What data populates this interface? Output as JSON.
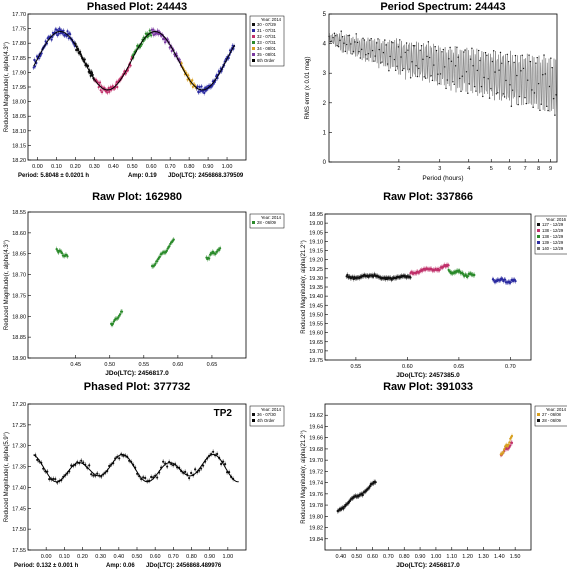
{
  "chart_data": [
    {
      "type": "scatter",
      "title": "Phased Plot: 24443",
      "ylabel": "Reduced Magnitude(r, alpha(4.3°)",
      "xlim": [
        -0.05,
        1.1
      ],
      "ylim": [
        18.2,
        17.7
      ],
      "xticks": [
        "0.00",
        "0.10",
        "0.20",
        "0.30",
        "0.40",
        "0.50",
        "0.60",
        "0.70",
        "0.80",
        "0.90",
        "1.00"
      ],
      "yticks": [
        "17.70",
        "17.75",
        "17.80",
        "17.85",
        "17.90",
        "17.95",
        "18.00",
        "18.05",
        "18.10",
        "18.15",
        "18.20"
      ],
      "footer": [
        "Period: 5.8048 ± 0.0201 h",
        "Amp: 0.19",
        "JDo(LTC): 2456868.379509"
      ],
      "legend": {
        "title": "Year: 2014",
        "items": [
          {
            "label": "30 - 07/29",
            "color": "#111111"
          },
          {
            "label": "31 - 07/31",
            "color": "#2a2aa0"
          },
          {
            "label": "32 - 07/31",
            "color": "#c0306a"
          },
          {
            "label": "33 - 07/31",
            "color": "#2a8a2a"
          },
          {
            "label": "34 - 08/01",
            "color": "#d8a020"
          },
          {
            "label": "35 - 08/01",
            "color": "#7a3aa0"
          },
          {
            "label": "6th Order",
            "color": "#000000"
          }
        ]
      },
      "fit": {
        "mean": 17.86,
        "amp": 0.1,
        "harmonic": 2
      },
      "colors": [
        "#2a2aa0",
        "#111111",
        "#c0306a",
        "#2a8a2a",
        "#7a3aa0",
        "#d8a020",
        "#2a2aa0"
      ],
      "segments": [
        0.0,
        0.2,
        0.3,
        0.5,
        0.6,
        0.76,
        0.84,
        1.05
      ]
    },
    {
      "type": "line",
      "title": "Period Spectrum: 24443",
      "ylabel": "RMS error (x 0.01 mag)",
      "xlabel": "Period (hours)",
      "xscale": "log",
      "xlim": [
        1.0,
        9.6
      ],
      "ylim": [
        0,
        5
      ],
      "xticks": [
        {
          "v": 2,
          "t": "2"
        },
        {
          "v": 3,
          "t": "3"
        },
        {
          "v": 4,
          "t": "4"
        },
        {
          "v": 5,
          "t": "5"
        },
        {
          "v": 6,
          "t": "6"
        },
        {
          "v": 7,
          "t": "7"
        },
        {
          "v": 8,
          "t": "8"
        },
        {
          "v": 9,
          "t": "9"
        }
      ],
      "yticks": [
        "0",
        "1",
        "2",
        "3",
        "4",
        "5"
      ],
      "envelope": {
        "top_start": 4.35,
        "top_end": 3.5,
        "bottom_start": 4.1,
        "bottom_end": 1.6
      }
    },
    {
      "type": "scatter",
      "title": "Raw Plot: 162980",
      "ylabel": "Reduced Magnitude(r, alpha(4.3°)",
      "xlabel": "JDo(LTC): 2456817.0",
      "xlim": [
        0.38,
        0.7
      ],
      "ylim": [
        18.9,
        18.55
      ],
      "xticks": [
        "0.45",
        "0.50",
        "0.55",
        "0.60",
        "0.65"
      ],
      "yticks": [
        "18.55",
        "18.60",
        "18.65",
        "18.70",
        "18.75",
        "18.80",
        "18.85",
        "18.90"
      ],
      "legend": {
        "title": "Year: 2014",
        "items": [
          {
            "label": "28 - 06/09",
            "color": "#2a8a2a"
          }
        ]
      },
      "blocks": [
        {
          "x0": 0.422,
          "x1": 0.438,
          "y0": 18.64,
          "y1": 18.66,
          "color": "#2a8a2a"
        },
        {
          "x0": 0.502,
          "x1": 0.518,
          "y0": 18.82,
          "y1": 18.79,
          "color": "#2a8a2a"
        },
        {
          "x0": 0.562,
          "x1": 0.594,
          "y0": 18.68,
          "y1": 18.62,
          "color": "#2a8a2a"
        },
        {
          "x0": 0.642,
          "x1": 0.662,
          "y0": 18.66,
          "y1": 18.64,
          "color": "#2a8a2a"
        }
      ]
    },
    {
      "type": "scatter",
      "title": "Raw Plot: 337866",
      "ylabel": "Reduced Magnitude(r, alpha(21.2°)",
      "xlabel": "JDo(LTC): 2457385.0",
      "xlim": [
        0.52,
        0.72
      ],
      "ylim": [
        19.75,
        18.95
      ],
      "xticks": [
        "0.55",
        "0.60",
        "0.65",
        "0.70"
      ],
      "yticks": [
        "18.95",
        "19.00",
        "19.05",
        "19.10",
        "19.15",
        "19.20",
        "19.25",
        "19.30",
        "19.35",
        "19.40",
        "19.45",
        "19.50",
        "19.55",
        "19.60",
        "19.65",
        "19.70",
        "19.75"
      ],
      "legend": {
        "title": "Year: 2016",
        "items": [
          {
            "label": "127 - 12/29",
            "color": "#111111"
          },
          {
            "label": "138 - 12/29",
            "color": "#c0306a"
          },
          {
            "label": "138 - 12/29",
            "color": "#2a8a2a"
          },
          {
            "label": "139 - 12/29",
            "color": "#2a2aa0"
          },
          {
            "label": "140 - 12/29",
            "color": "#777777"
          }
        ]
      },
      "blocks": [
        {
          "x0": 0.541,
          "x1": 0.603,
          "y0": 19.29,
          "y1": 19.3,
          "color": "#111111"
        },
        {
          "x0": 0.603,
          "x1": 0.64,
          "y0": 19.27,
          "y1": 19.24,
          "color": "#c0306a"
        },
        {
          "x0": 0.64,
          "x1": 0.665,
          "y0": 19.26,
          "y1": 19.29,
          "color": "#2a8a2a"
        },
        {
          "x0": 0.683,
          "x1": 0.705,
          "y0": 19.31,
          "y1": 19.32,
          "color": "#2a2aa0"
        }
      ]
    },
    {
      "type": "scatter",
      "title": "Phased Plot: 377732",
      "annotation": "TP2",
      "ylabel": "Reduced Magnitude(r, alpha(5.9°)",
      "xlim": [
        -0.1,
        1.1
      ],
      "ylim": [
        17.55,
        17.2
      ],
      "xticks": [
        "0.00",
        "0.10",
        "0.20",
        "0.30",
        "0.40",
        "0.50",
        "0.60",
        "0.70",
        "0.80",
        "0.90",
        "1.00"
      ],
      "yticks": [
        "17.20",
        "17.25",
        "17.30",
        "17.35",
        "17.40",
        "17.45",
        "17.50",
        "17.55"
      ],
      "footer": [
        "Period: 0.132 ± 0.001 h",
        "Amp: 0.06",
        "JDo(LTC): 2456868.489976"
      ],
      "legend": {
        "title": "Year: 2014",
        "items": [
          {
            "label": "36 - 07/30",
            "color": "#111111"
          },
          {
            "label": "4th Order",
            "color": "#000000"
          }
        ]
      },
      "fit": {
        "mean": 17.355,
        "amp": 0.03,
        "harmonic": 4
      }
    },
    {
      "type": "scatter",
      "title": "Raw Plot: 391033",
      "ylabel": "Reduced Magnitude(r, alpha(21.2°)",
      "xlabel": "JDo(LTC): 2456817.0",
      "xlim": [
        0.3,
        1.6
      ],
      "ylim": [
        19.86,
        19.6
      ],
      "xticks": [
        "0.40",
        "0.50",
        "0.60",
        "0.70",
        "0.80",
        "0.90",
        "1.00",
        "1.10",
        "1.20",
        "1.30",
        "1.40",
        "1.50"
      ],
      "yticks": [
        "19.62",
        "19.64",
        "19.66",
        "19.68",
        "19.70",
        "19.72",
        "19.74",
        "19.76",
        "19.78",
        "19.80",
        "19.82",
        "19.84"
      ],
      "legend": {
        "title": "Year: 2014",
        "items": [
          {
            "label": "27 - 06/08",
            "color": "#d8a020"
          },
          {
            "label": "28 - 06/09",
            "color": "#111111"
          }
        ]
      },
      "blocks": [
        {
          "x0": 0.38,
          "x1": 0.62,
          "y0": 19.79,
          "y1": 19.74,
          "color": "#111111"
        },
        {
          "x0": 1.41,
          "x1": 1.48,
          "y0": 19.69,
          "y1": 19.67,
          "color": "#c0306a"
        },
        {
          "x0": 1.41,
          "x1": 1.48,
          "y0": 19.69,
          "y1": 19.66,
          "color": "#d8a020"
        }
      ]
    }
  ]
}
